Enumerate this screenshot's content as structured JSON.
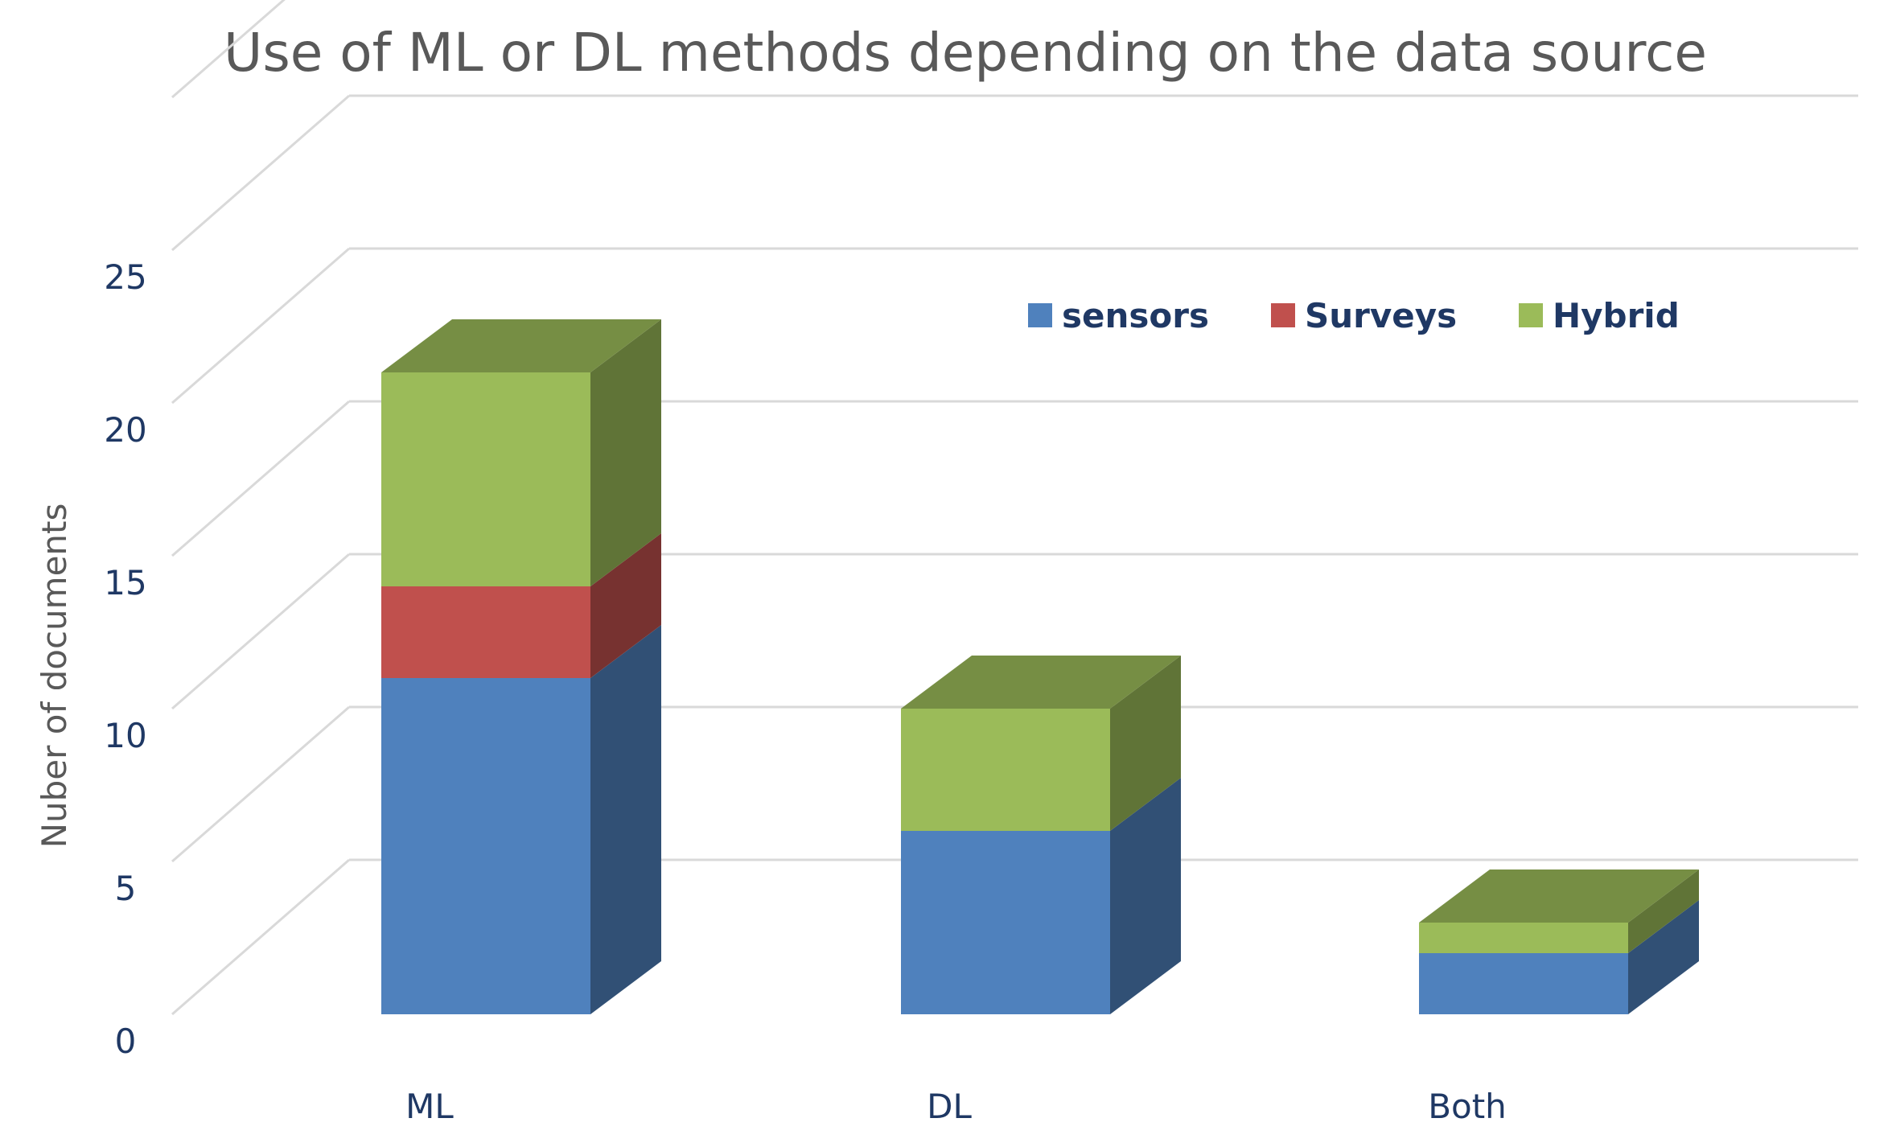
{
  "chart_data": {
    "type": "bar",
    "stacked": true,
    "three_d": true,
    "title": "Use of ML or DL methods depending on the data source",
    "xlabel": "",
    "ylabel": "Nuber of documents",
    "categories": [
      "ML",
      "DL",
      "Both"
    ],
    "series": [
      {
        "name": "sensors",
        "values": [
          11,
          6,
          2
        ],
        "color": "#4F81BD"
      },
      {
        "name": "Surveys",
        "values": [
          3,
          0,
          0
        ],
        "color": "#C0504D"
      },
      {
        "name": "Hybrid",
        "values": [
          7,
          4,
          1
        ],
        "color": "#9BBB59"
      }
    ],
    "ylim": [
      0,
      25
    ],
    "yticks": [
      0,
      5,
      10,
      15,
      20,
      25
    ],
    "grid": true,
    "legend_position": "top-right"
  }
}
